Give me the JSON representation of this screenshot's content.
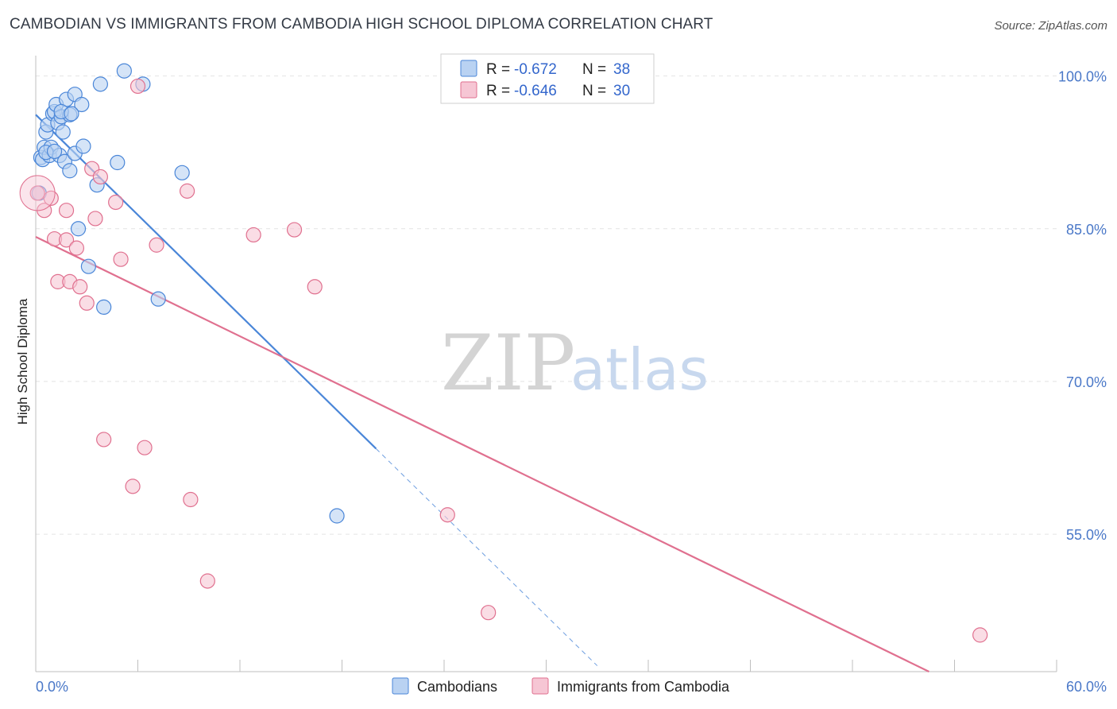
{
  "title": "CAMBODIAN VS IMMIGRANTS FROM CAMBODIA HIGH SCHOOL DIPLOMA CORRELATION CHART",
  "source": "Source: ZipAtlas.com",
  "watermark": {
    "zip": "ZIP",
    "atlas": "atlas"
  },
  "colors": {
    "blue": "#4a86d8",
    "blue_fill": "#b9d2f2",
    "pink": "#e0708f",
    "pink_fill": "#f6c6d4",
    "axis_label": "#4a78c8"
  },
  "legend": {
    "r_label": "R =",
    "n_label": "N =",
    "items": [
      {
        "r": "-0.672",
        "n": "38"
      },
      {
        "r": "-0.646",
        "n": "30"
      }
    ]
  },
  "bottom_legend": [
    "Cambodians",
    "Immigrants from Cambodia"
  ],
  "chart_data": {
    "type": "scatter",
    "ylabel": "High School Diploma",
    "x_tick_labels": [
      "0.0%",
      "60.0%"
    ],
    "y_tick_labels": [
      "100.0%",
      "85.0%",
      "70.0%",
      "55.0%"
    ],
    "xlim": [
      0,
      60
    ],
    "ylim": [
      41.5,
      102
    ],
    "y_ticks": [
      100,
      85,
      70,
      55
    ],
    "series": [
      {
        "name": "Cambodians",
        "color": "#4a86d8",
        "trend": {
          "x0": 0,
          "y0": 96.2,
          "x1": 20,
          "y1": 63.4,
          "dash_to_x": 33
        },
        "points": [
          [
            0.2,
            88.5
          ],
          [
            0.3,
            92.0
          ],
          [
            0.4,
            91.8
          ],
          [
            0.5,
            93.0
          ],
          [
            0.6,
            94.5
          ],
          [
            0.7,
            95.2
          ],
          [
            0.8,
            92.2
          ],
          [
            0.9,
            93.0
          ],
          [
            1.0,
            96.3
          ],
          [
            1.1,
            96.5
          ],
          [
            1.2,
            97.2
          ],
          [
            1.3,
            95.4
          ],
          [
            1.4,
            92.2
          ],
          [
            1.5,
            96.0
          ],
          [
            1.6,
            94.5
          ],
          [
            1.7,
            91.6
          ],
          [
            1.8,
            97.7
          ],
          [
            2.0,
            96.2
          ],
          [
            2.0,
            90.7
          ],
          [
            2.3,
            98.2
          ],
          [
            2.3,
            92.4
          ],
          [
            2.5,
            85.0
          ],
          [
            2.7,
            97.2
          ],
          [
            2.8,
            93.1
          ],
          [
            3.1,
            81.3
          ],
          [
            3.6,
            89.3
          ],
          [
            3.8,
            99.2
          ],
          [
            4.0,
            77.3
          ],
          [
            4.8,
            91.5
          ],
          [
            5.2,
            100.5
          ],
          [
            6.3,
            99.2
          ],
          [
            7.2,
            78.1
          ],
          [
            8.6,
            90.5
          ],
          [
            17.7,
            56.8
          ],
          [
            1.5,
            96.5
          ],
          [
            0.6,
            92.5
          ],
          [
            1.1,
            92.6
          ],
          [
            2.1,
            96.3
          ]
        ]
      },
      {
        "name": "Immigrants from Cambodia",
        "color": "#e0708f",
        "trend": {
          "x0": 0,
          "y0": 84.2,
          "x1": 52.5,
          "y1": 41.5
        },
        "points": [
          [
            0.1,
            88.5
          ],
          [
            0.5,
            86.8
          ],
          [
            0.9,
            88.0
          ],
          [
            1.1,
            84.0
          ],
          [
            1.3,
            79.8
          ],
          [
            1.8,
            86.8
          ],
          [
            1.8,
            83.9
          ],
          [
            2.0,
            79.8
          ],
          [
            2.4,
            83.1
          ],
          [
            2.6,
            79.3
          ],
          [
            3.0,
            77.7
          ],
          [
            3.3,
            90.9
          ],
          [
            3.5,
            86.0
          ],
          [
            3.8,
            90.1
          ],
          [
            4.0,
            64.3
          ],
          [
            4.7,
            87.6
          ],
          [
            5.0,
            82.0
          ],
          [
            5.7,
            59.7
          ],
          [
            6.0,
            99.0
          ],
          [
            6.4,
            63.5
          ],
          [
            7.1,
            83.4
          ],
          [
            8.9,
            88.7
          ],
          [
            9.1,
            58.4
          ],
          [
            10.1,
            50.4
          ],
          [
            12.8,
            84.4
          ],
          [
            15.2,
            84.9
          ],
          [
            16.4,
            79.3
          ],
          [
            24.2,
            56.9
          ],
          [
            26.6,
            47.3
          ],
          [
            55.5,
            45.1
          ]
        ]
      }
    ]
  }
}
